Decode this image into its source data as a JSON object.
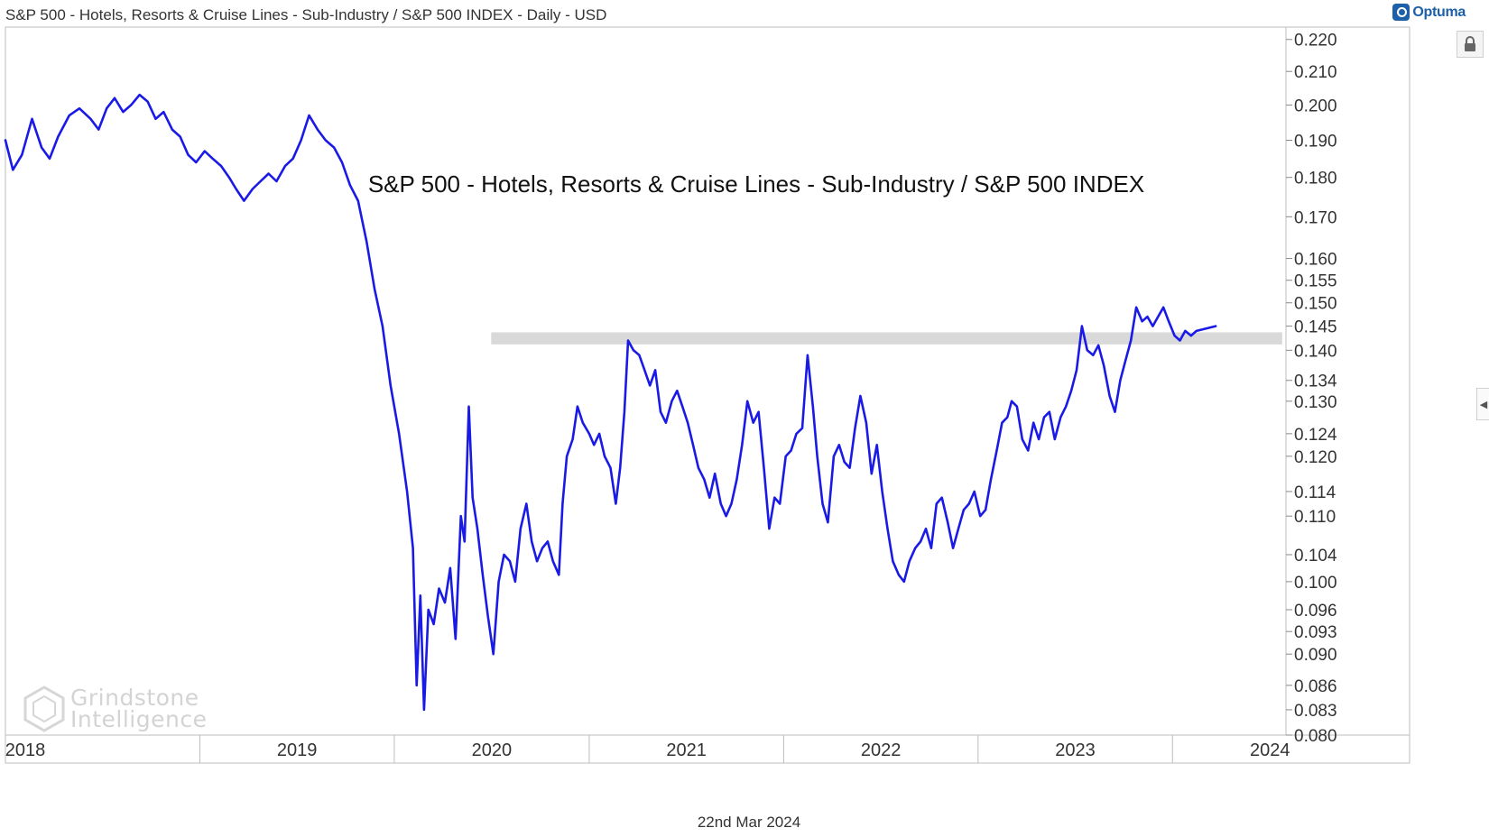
{
  "header": {
    "title": "S&P 500 - Hotels, Resorts & Cruise Lines - Sub-Industry / S&P 500 INDEX - Daily - USD"
  },
  "brand": {
    "name": "Optuma"
  },
  "footer": {
    "date": "22nd Mar 2024"
  },
  "watermark": {
    "line1": "Grindstone",
    "line2": "Intelligence"
  },
  "icons": {
    "lock": "lock-icon",
    "side_arrow": "chevron-left-icon"
  },
  "colors": {
    "line": "#1a1ae6",
    "band": "#d9d9d9",
    "grid": "#cccccc"
  },
  "chart_data": {
    "type": "line",
    "title": "S&P 500 - Hotels, Resorts & Cruise Lines - Sub-Industry / S&P 500 INDEX",
    "x_axis": {
      "type": "date",
      "labels": [
        "2018",
        "2019",
        "2020",
        "2021",
        "2022",
        "2023",
        "2024"
      ],
      "start": "2018-01-01",
      "end": "2024-08-01"
    },
    "y_axis": {
      "scale": "log",
      "ylim": [
        0.08,
        0.224
      ],
      "ticks": [
        "0.220",
        "0.210",
        "0.200",
        "0.190",
        "0.180",
        "0.170",
        "0.160",
        "0.155",
        "0.150",
        "0.145",
        "0.140",
        "0.134",
        "0.130",
        "0.124",
        "0.120",
        "0.114",
        "0.110",
        "0.104",
        "0.100",
        "0.096",
        "0.093",
        "0.090",
        "0.086",
        "0.083",
        "0.080"
      ]
    },
    "resistance_band": {
      "from": "2020-07-01",
      "to": "2024-07-25",
      "y_low": 0.1412,
      "y_high": 0.1437
    },
    "series": [
      {
        "points": [
          [
            "2018-01-01",
            0.19
          ],
          [
            "2018-01-15",
            0.182
          ],
          [
            "2018-02-01",
            0.186
          ],
          [
            "2018-02-20",
            0.196
          ],
          [
            "2018-03-10",
            0.188
          ],
          [
            "2018-03-25",
            0.185
          ],
          [
            "2018-04-10",
            0.191
          ],
          [
            "2018-05-01",
            0.197
          ],
          [
            "2018-05-20",
            0.199
          ],
          [
            "2018-06-10",
            0.196
          ],
          [
            "2018-06-25",
            0.193
          ],
          [
            "2018-07-10",
            0.199
          ],
          [
            "2018-07-25",
            0.202
          ],
          [
            "2018-08-10",
            0.198
          ],
          [
            "2018-08-25",
            0.2
          ],
          [
            "2018-09-10",
            0.203
          ],
          [
            "2018-09-25",
            0.201
          ],
          [
            "2018-10-10",
            0.196
          ],
          [
            "2018-10-25",
            0.198
          ],
          [
            "2018-11-10",
            0.193
          ],
          [
            "2018-11-25",
            0.191
          ],
          [
            "2018-12-10",
            0.186
          ],
          [
            "2018-12-25",
            0.184
          ],
          [
            "2019-01-10",
            0.187
          ],
          [
            "2019-01-25",
            0.185
          ],
          [
            "2019-02-10",
            0.183
          ],
          [
            "2019-02-25",
            0.18
          ],
          [
            "2019-03-10",
            0.177
          ],
          [
            "2019-03-25",
            0.174
          ],
          [
            "2019-04-10",
            0.177
          ],
          [
            "2019-04-25",
            0.179
          ],
          [
            "2019-05-10",
            0.181
          ],
          [
            "2019-05-25",
            0.179
          ],
          [
            "2019-06-10",
            0.183
          ],
          [
            "2019-06-25",
            0.185
          ],
          [
            "2019-07-10",
            0.19
          ],
          [
            "2019-07-25",
            0.197
          ],
          [
            "2019-08-10",
            0.193
          ],
          [
            "2019-08-25",
            0.19
          ],
          [
            "2019-09-10",
            0.188
          ],
          [
            "2019-09-25",
            0.184
          ],
          [
            "2019-10-10",
            0.178
          ],
          [
            "2019-10-25",
            0.174
          ],
          [
            "2019-11-10",
            0.164
          ],
          [
            "2019-11-25",
            0.153
          ],
          [
            "2019-12-10",
            0.145
          ],
          [
            "2019-12-25",
            0.133
          ],
          [
            "2020-01-10",
            0.124
          ],
          [
            "2020-01-25",
            0.114
          ],
          [
            "2020-02-05",
            0.105
          ],
          [
            "2020-02-12",
            0.086
          ],
          [
            "2020-02-19",
            0.098
          ],
          [
            "2020-02-26",
            0.083
          ],
          [
            "2020-03-05",
            0.096
          ],
          [
            "2020-03-15",
            0.094
          ],
          [
            "2020-03-25",
            0.099
          ],
          [
            "2020-04-05",
            0.097
          ],
          [
            "2020-04-15",
            0.102
          ],
          [
            "2020-04-25",
            0.092
          ],
          [
            "2020-05-05",
            0.11
          ],
          [
            "2020-05-12",
            0.106
          ],
          [
            "2020-05-20",
            0.129
          ],
          [
            "2020-05-27",
            0.113
          ],
          [
            "2020-06-05",
            0.108
          ],
          [
            "2020-06-15",
            0.101
          ],
          [
            "2020-06-25",
            0.095
          ],
          [
            "2020-07-05",
            0.09
          ],
          [
            "2020-07-15",
            0.1
          ],
          [
            "2020-07-25",
            0.104
          ],
          [
            "2020-08-05",
            0.103
          ],
          [
            "2020-08-15",
            0.1
          ],
          [
            "2020-08-25",
            0.108
          ],
          [
            "2020-09-05",
            0.112
          ],
          [
            "2020-09-15",
            0.106
          ],
          [
            "2020-09-25",
            0.103
          ],
          [
            "2020-10-05",
            0.105
          ],
          [
            "2020-10-15",
            0.106
          ],
          [
            "2020-10-25",
            0.103
          ],
          [
            "2020-11-05",
            0.101
          ],
          [
            "2020-11-12",
            0.112
          ],
          [
            "2020-11-20",
            0.12
          ],
          [
            "2020-12-01",
            0.123
          ],
          [
            "2020-12-10",
            0.129
          ],
          [
            "2020-12-20",
            0.126
          ],
          [
            "2021-01-01",
            0.124
          ],
          [
            "2021-01-10",
            0.122
          ],
          [
            "2021-01-20",
            0.124
          ],
          [
            "2021-01-30",
            0.12
          ],
          [
            "2021-02-10",
            0.118
          ],
          [
            "2021-02-20",
            0.112
          ],
          [
            "2021-02-28",
            0.118
          ],
          [
            "2021-03-08",
            0.128
          ],
          [
            "2021-03-15",
            0.142
          ],
          [
            "2021-03-25",
            0.14
          ],
          [
            "2021-04-05",
            0.139
          ],
          [
            "2021-04-15",
            0.136
          ],
          [
            "2021-04-25",
            0.133
          ],
          [
            "2021-05-05",
            0.136
          ],
          [
            "2021-05-15",
            0.128
          ],
          [
            "2021-05-25",
            0.126
          ],
          [
            "2021-06-05",
            0.13
          ],
          [
            "2021-06-15",
            0.132
          ],
          [
            "2021-06-25",
            0.129
          ],
          [
            "2021-07-05",
            0.126
          ],
          [
            "2021-07-15",
            0.122
          ],
          [
            "2021-07-25",
            0.118
          ],
          [
            "2021-08-05",
            0.116
          ],
          [
            "2021-08-15",
            0.113
          ],
          [
            "2021-08-25",
            0.117
          ],
          [
            "2021-09-05",
            0.112
          ],
          [
            "2021-09-15",
            0.11
          ],
          [
            "2021-09-25",
            0.112
          ],
          [
            "2021-10-05",
            0.116
          ],
          [
            "2021-10-15",
            0.122
          ],
          [
            "2021-10-25",
            0.13
          ],
          [
            "2021-11-05",
            0.126
          ],
          [
            "2021-11-15",
            0.128
          ],
          [
            "2021-11-25",
            0.118
          ],
          [
            "2021-12-05",
            0.108
          ],
          [
            "2021-12-15",
            0.113
          ],
          [
            "2021-12-25",
            0.112
          ],
          [
            "2022-01-05",
            0.12
          ],
          [
            "2022-01-15",
            0.121
          ],
          [
            "2022-01-25",
            0.124
          ],
          [
            "2022-02-05",
            0.125
          ],
          [
            "2022-02-15",
            0.139
          ],
          [
            "2022-02-25",
            0.129
          ],
          [
            "2022-03-05",
            0.12
          ],
          [
            "2022-03-15",
            0.112
          ],
          [
            "2022-03-25",
            0.109
          ],
          [
            "2022-04-05",
            0.12
          ],
          [
            "2022-04-15",
            0.122
          ],
          [
            "2022-04-25",
            0.119
          ],
          [
            "2022-05-05",
            0.118
          ],
          [
            "2022-05-15",
            0.125
          ],
          [
            "2022-05-25",
            0.131
          ],
          [
            "2022-06-05",
            0.126
          ],
          [
            "2022-06-15",
            0.117
          ],
          [
            "2022-06-25",
            0.122
          ],
          [
            "2022-07-05",
            0.114
          ],
          [
            "2022-07-15",
            0.108
          ],
          [
            "2022-07-25",
            0.103
          ],
          [
            "2022-08-05",
            0.101
          ],
          [
            "2022-08-15",
            0.1
          ],
          [
            "2022-08-25",
            0.103
          ],
          [
            "2022-09-05",
            0.105
          ],
          [
            "2022-09-15",
            0.106
          ],
          [
            "2022-09-25",
            0.108
          ],
          [
            "2022-10-05",
            0.105
          ],
          [
            "2022-10-15",
            0.112
          ],
          [
            "2022-10-25",
            0.113
          ],
          [
            "2022-11-05",
            0.109
          ],
          [
            "2022-11-15",
            0.105
          ],
          [
            "2022-11-25",
            0.108
          ],
          [
            "2022-12-05",
            0.111
          ],
          [
            "2022-12-15",
            0.112
          ],
          [
            "2022-12-25",
            0.114
          ],
          [
            "2023-01-05",
            0.11
          ],
          [
            "2023-01-15",
            0.111
          ],
          [
            "2023-01-25",
            0.116
          ],
          [
            "2023-02-05",
            0.121
          ],
          [
            "2023-02-15",
            0.126
          ],
          [
            "2023-02-25",
            0.127
          ],
          [
            "2023-03-05",
            0.13
          ],
          [
            "2023-03-15",
            0.129
          ],
          [
            "2023-03-25",
            0.123
          ],
          [
            "2023-04-05",
            0.121
          ],
          [
            "2023-04-15",
            0.126
          ],
          [
            "2023-04-25",
            0.123
          ],
          [
            "2023-05-05",
            0.127
          ],
          [
            "2023-05-15",
            0.128
          ],
          [
            "2023-05-25",
            0.123
          ],
          [
            "2023-06-05",
            0.127
          ],
          [
            "2023-06-15",
            0.129
          ],
          [
            "2023-06-25",
            0.132
          ],
          [
            "2023-07-05",
            0.136
          ],
          [
            "2023-07-15",
            0.145
          ],
          [
            "2023-07-25",
            0.14
          ],
          [
            "2023-08-05",
            0.139
          ],
          [
            "2023-08-15",
            0.141
          ],
          [
            "2023-08-25",
            0.137
          ],
          [
            "2023-09-05",
            0.131
          ],
          [
            "2023-09-15",
            0.128
          ],
          [
            "2023-09-25",
            0.134
          ],
          [
            "2023-10-05",
            0.138
          ],
          [
            "2023-10-15",
            0.142
          ],
          [
            "2023-10-25",
            0.149
          ],
          [
            "2023-11-05",
            0.146
          ],
          [
            "2023-11-15",
            0.147
          ],
          [
            "2023-11-25",
            0.145
          ],
          [
            "2023-12-05",
            0.147
          ],
          [
            "2023-12-15",
            0.149
          ],
          [
            "2023-12-25",
            0.146
          ],
          [
            "2024-01-05",
            0.143
          ],
          [
            "2024-01-15",
            0.142
          ],
          [
            "2024-01-25",
            0.144
          ],
          [
            "2024-02-05",
            0.143
          ],
          [
            "2024-02-15",
            0.144
          ],
          [
            "2024-03-22",
            0.145
          ]
        ]
      }
    ]
  }
}
